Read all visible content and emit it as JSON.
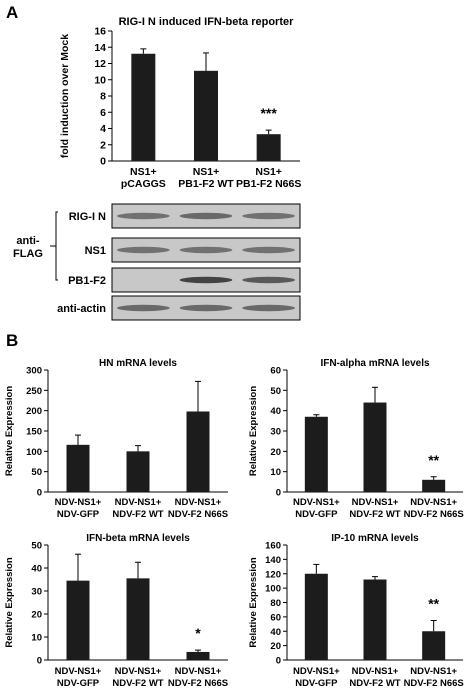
{
  "panel_labels": {
    "a": "A",
    "b": "B"
  },
  "blot": {
    "bracket_label_line1": "anti-",
    "bracket_label_line2": "FLAG",
    "rows": [
      {
        "label": "RIG-I N",
        "bands": [
          0.55,
          0.6,
          0.55
        ]
      },
      {
        "label": "NS1",
        "bands": [
          0.55,
          0.55,
          0.55
        ]
      },
      {
        "label": "PB1-F2",
        "bands": [
          0.0,
          0.85,
          0.7
        ]
      },
      {
        "label": "anti-actin",
        "bands": [
          0.6,
          0.6,
          0.6
        ]
      }
    ]
  },
  "colors": {
    "bar": "#1c1c1c",
    "axis": "#000000",
    "blot_bg": "#c8c8c8",
    "band": "#2a2a2a"
  },
  "chart_data": [
    {
      "type": "bar",
      "title": "RIG-I N induced IFN-beta reporter",
      "ylabel": "fold induction over Mock",
      "ylim": [
        0,
        16
      ],
      "yticks": [
        0,
        2,
        4,
        6,
        8,
        10,
        12,
        14,
        16
      ],
      "categories": [
        [
          "NS1+",
          "pCAGGS"
        ],
        [
          "NS1+",
          "PB1-F2 WT"
        ],
        [
          "NS1+",
          "PB1-F2 N66S"
        ]
      ],
      "values": [
        13.2,
        11.1,
        3.3
      ],
      "errors": [
        0.6,
        2.2,
        0.5
      ],
      "significance": [
        "",
        "",
        "***"
      ]
    },
    {
      "type": "bar",
      "title": "HN mRNA levels",
      "ylabel": "Relative Expression",
      "ylim": [
        0,
        300
      ],
      "yticks": [
        0,
        50,
        100,
        150,
        200,
        250,
        300
      ],
      "categories": [
        [
          "NDV-NS1+",
          "NDV-GFP"
        ],
        [
          "NDV-NS1+",
          "NDV-F2 WT"
        ],
        [
          "NDV-NS1+",
          "NDV-F2 N66S"
        ]
      ],
      "values": [
        116,
        100,
        198
      ],
      "errors": [
        24,
        14,
        74
      ],
      "significance": [
        "",
        "",
        ""
      ]
    },
    {
      "type": "bar",
      "title": "IFN-alpha mRNA levels",
      "ylabel": "Relative Expression",
      "ylim": [
        0,
        60
      ],
      "yticks": [
        0,
        10,
        20,
        30,
        40,
        50,
        60
      ],
      "categories": [
        [
          "NDV-NS1+",
          "NDV-GFP"
        ],
        [
          "NDV-NS1+",
          "NDV-F2 WT"
        ],
        [
          "NDV-NS1+",
          "NDV-F2 N66S"
        ]
      ],
      "values": [
        37,
        44,
        6
      ],
      "errors": [
        1,
        7.5,
        1.5
      ],
      "significance": [
        "",
        "",
        "**"
      ]
    },
    {
      "type": "bar",
      "title": "IFN-beta mRNA levels",
      "ylabel": "Relative Expression",
      "ylim": [
        0,
        50
      ],
      "yticks": [
        0,
        10,
        20,
        30,
        40,
        50
      ],
      "categories": [
        [
          "NDV-NS1+",
          "NDV-GFP"
        ],
        [
          "NDV-NS1+",
          "NDV-F2 WT"
        ],
        [
          "NDV-NS1+",
          "NDV-F2 N66S"
        ]
      ],
      "values": [
        34.5,
        35.5,
        3.5
      ],
      "errors": [
        11.5,
        7,
        0.8
      ],
      "significance": [
        "",
        "",
        "*"
      ]
    },
    {
      "type": "bar",
      "title": "IP-10 mRNA levels",
      "ylabel": "Relative Expression",
      "ylim": [
        0,
        160
      ],
      "yticks": [
        0,
        20,
        40,
        60,
        80,
        100,
        120,
        140,
        160
      ],
      "categories": [
        [
          "NDV-NS1+",
          "NDV-GFP"
        ],
        [
          "NDV-NS1+",
          "NDV-F2 WT"
        ],
        [
          "NDV-NS1+",
          "NDV-F2 N66S"
        ]
      ],
      "values": [
        120,
        112,
        40
      ],
      "errors": [
        13,
        4,
        15
      ],
      "significance": [
        "",
        "",
        "**"
      ]
    }
  ]
}
